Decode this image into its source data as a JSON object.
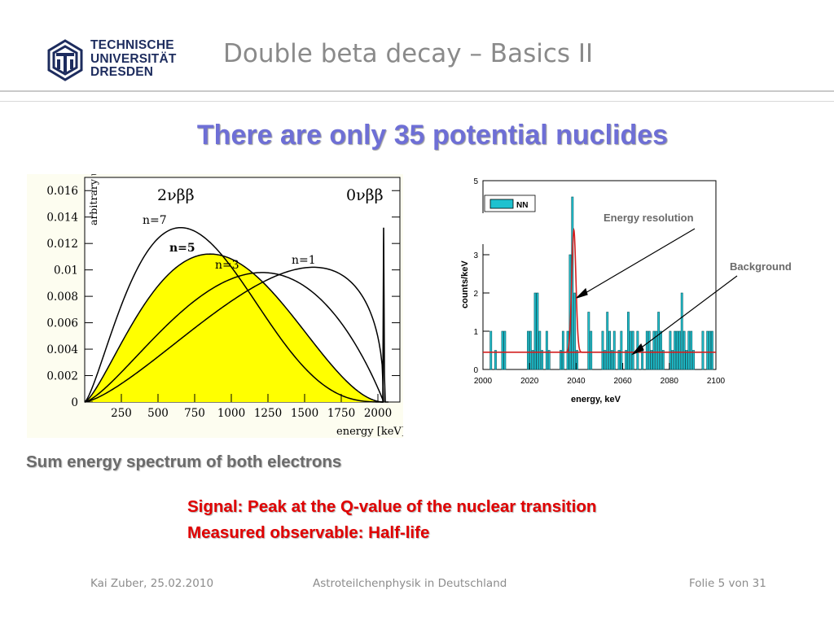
{
  "header": {
    "logo_lines": [
      "TECHNISCHE",
      "UNIVERSITÄT",
      "DRESDEN"
    ],
    "title": "Double beta decay – Basics II",
    "logo_icon": "tu-dresden-logo-icon"
  },
  "heading": "There are only 35 potential nuclides",
  "chart_data": [
    {
      "type": "line",
      "ylabel": "arbitrary units",
      "xlabel": "energy [keV]",
      "xlim": [
        0,
        2150
      ],
      "ylim": [
        0,
        0.017
      ],
      "x_ticks": [
        "250",
        "500",
        "750",
        "1000",
        "1250",
        "1500",
        "1750",
        "2000"
      ],
      "y_ticks": [
        "0",
        "0.002",
        "0.004",
        "0.006",
        "0.008",
        "0.01",
        "0.012",
        "0.014",
        "0.016"
      ],
      "annotations": [
        "2νββ",
        "0νββ"
      ],
      "q_value": 2039,
      "peak_height": 0.0132,
      "series": [
        {
          "name": "n=7",
          "peak_x": 655,
          "peak_y": 0.0132
        },
        {
          "name": "n=5",
          "peak_x": 855,
          "peak_y": 0.0112,
          "filled": true,
          "fill_color": "#ffff00"
        },
        {
          "name": "n=3",
          "peak_x": 1210,
          "peak_y": 0.0098
        },
        {
          "name": "n=1",
          "peak_x": 1560,
          "peak_y": 0.0102
        }
      ]
    },
    {
      "type": "bar",
      "xlabel": "energy, keV",
      "ylabel": "counts/keV",
      "xlim": [
        2000,
        2100
      ],
      "ylim": [
        0,
        5
      ],
      "x_ticks": [
        "2000",
        "2020",
        "2040",
        "2060",
        "2080",
        "2100"
      ],
      "y_ticks": [
        "0",
        "1",
        "2",
        "3",
        "5"
      ],
      "legend": "NN",
      "background_level": 0.45,
      "peak_center": 2039,
      "peak_height": 3.65,
      "annotations": [
        "Energy resolution",
        "Background"
      ],
      "bars": [
        {
          "x": 2004,
          "y": 1
        },
        {
          "x": 2006,
          "y": 0.5
        },
        {
          "x": 2009,
          "y": 1
        },
        {
          "x": 2010,
          "y": 1
        },
        {
          "x": 2020,
          "y": 1
        },
        {
          "x": 2021,
          "y": 1
        },
        {
          "x": 2022,
          "y": 0.5
        },
        {
          "x": 2023,
          "y": 2
        },
        {
          "x": 2024,
          "y": 2
        },
        {
          "x": 2025,
          "y": 1
        },
        {
          "x": 2026,
          "y": 0.5
        },
        {
          "x": 2028,
          "y": 1
        },
        {
          "x": 2029,
          "y": 0.5
        },
        {
          "x": 2034,
          "y": 0.5
        },
        {
          "x": 2035,
          "y": 1
        },
        {
          "x": 2037,
          "y": 1
        },
        {
          "x": 2038,
          "y": 3
        },
        {
          "x": 2039,
          "y": 4
        },
        {
          "x": 2040,
          "y": 2
        },
        {
          "x": 2041,
          "y": 0.5
        },
        {
          "x": 2046,
          "y": 1.5
        },
        {
          "x": 2047,
          "y": 1
        },
        {
          "x": 2052,
          "y": 1
        },
        {
          "x": 2053,
          "y": 0.5
        },
        {
          "x": 2054,
          "y": 1.5
        },
        {
          "x": 2055,
          "y": 1
        },
        {
          "x": 2056,
          "y": 0.5
        },
        {
          "x": 2057,
          "y": 1
        },
        {
          "x": 2059,
          "y": 0.5
        },
        {
          "x": 2060,
          "y": 1
        },
        {
          "x": 2062,
          "y": 0.5
        },
        {
          "x": 2063,
          "y": 1.5
        },
        {
          "x": 2064,
          "y": 1
        },
        {
          "x": 2065,
          "y": 1
        },
        {
          "x": 2067,
          "y": 1
        },
        {
          "x": 2069,
          "y": 0.5
        },
        {
          "x": 2071,
          "y": 1
        },
        {
          "x": 2072,
          "y": 1
        },
        {
          "x": 2073,
          "y": 0.5
        },
        {
          "x": 2074,
          "y": 1
        },
        {
          "x": 2075,
          "y": 1
        },
        {
          "x": 2076,
          "y": 1.5
        },
        {
          "x": 2077,
          "y": 1
        },
        {
          "x": 2078,
          "y": 0.5
        },
        {
          "x": 2081,
          "y": 1
        },
        {
          "x": 2082,
          "y": 0.5
        },
        {
          "x": 2083,
          "y": 1
        },
        {
          "x": 2084,
          "y": 1
        },
        {
          "x": 2085,
          "y": 1
        },
        {
          "x": 2086,
          "y": 2
        },
        {
          "x": 2087,
          "y": 1
        },
        {
          "x": 2088,
          "y": 0.5
        },
        {
          "x": 2089,
          "y": 1
        },
        {
          "x": 2090,
          "y": 1
        },
        {
          "x": 2091,
          "y": 0.5
        },
        {
          "x": 2095,
          "y": 1
        },
        {
          "x": 2097,
          "y": 1
        },
        {
          "x": 2098,
          "y": 1
        },
        {
          "x": 2099,
          "y": 1
        }
      ]
    }
  ],
  "caption": "Sum energy spectrum of both electrons",
  "signal_lines": {
    "signal": "Signal: Peak at the Q-value of the nuclear transition",
    "observable": "Measured observable: Half-life"
  },
  "footer": {
    "author": "Kai Zuber, 25.02.2010",
    "event": "Astroteilchenphysik in Deutschland",
    "page": "Folie 5 von 31"
  }
}
